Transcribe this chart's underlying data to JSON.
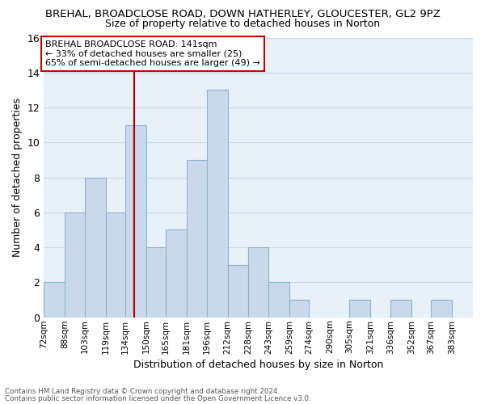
{
  "title1": "BREHAL, BROADCLOSE ROAD, DOWN HATHERLEY, GLOUCESTER, GL2 9PZ",
  "title2": "Size of property relative to detached houses in Norton",
  "xlabel": "Distribution of detached houses by size in Norton",
  "ylabel": "Number of detached properties",
  "footnote1": "Contains HM Land Registry data © Crown copyright and database right 2024.",
  "footnote2": "Contains public sector information licensed under the Open Government Licence v3.0.",
  "bin_labels": [
    "72sqm",
    "88sqm",
    "103sqm",
    "119sqm",
    "134sqm",
    "150sqm",
    "165sqm",
    "181sqm",
    "196sqm",
    "212sqm",
    "228sqm",
    "243sqm",
    "259sqm",
    "274sqm",
    "290sqm",
    "305sqm",
    "321sqm",
    "336sqm",
    "352sqm",
    "367sqm",
    "383sqm"
  ],
  "bin_edges": [
    72,
    88,
    103,
    119,
    134,
    150,
    165,
    181,
    196,
    212,
    228,
    243,
    259,
    274,
    290,
    305,
    321,
    336,
    352,
    367,
    383,
    399
  ],
  "bar_heights": [
    2,
    6,
    8,
    6,
    11,
    4,
    5,
    9,
    13,
    3,
    4,
    2,
    1,
    0,
    0,
    1,
    0,
    1,
    0,
    1,
    0
  ],
  "bar_color": "#c9d9eb",
  "bar_edge_color": "#8cb4d2",
  "grid_color": "#c8d8e8",
  "background_color": "#e8f0f8",
  "red_line_x": 141,
  "ylim": [
    0,
    16
  ],
  "yticks": [
    0,
    2,
    4,
    6,
    8,
    10,
    12,
    14,
    16
  ],
  "annotation_title": "BREHAL BROADCLOSE ROAD: 141sqm",
  "annotation_line1": "← 33% of detached houses are smaller (25)",
  "annotation_line2": "65% of semi-detached houses are larger (49) →",
  "annotation_box_color": "#ffffff",
  "annotation_border_color": "#cc0000",
  "property_value": 141
}
